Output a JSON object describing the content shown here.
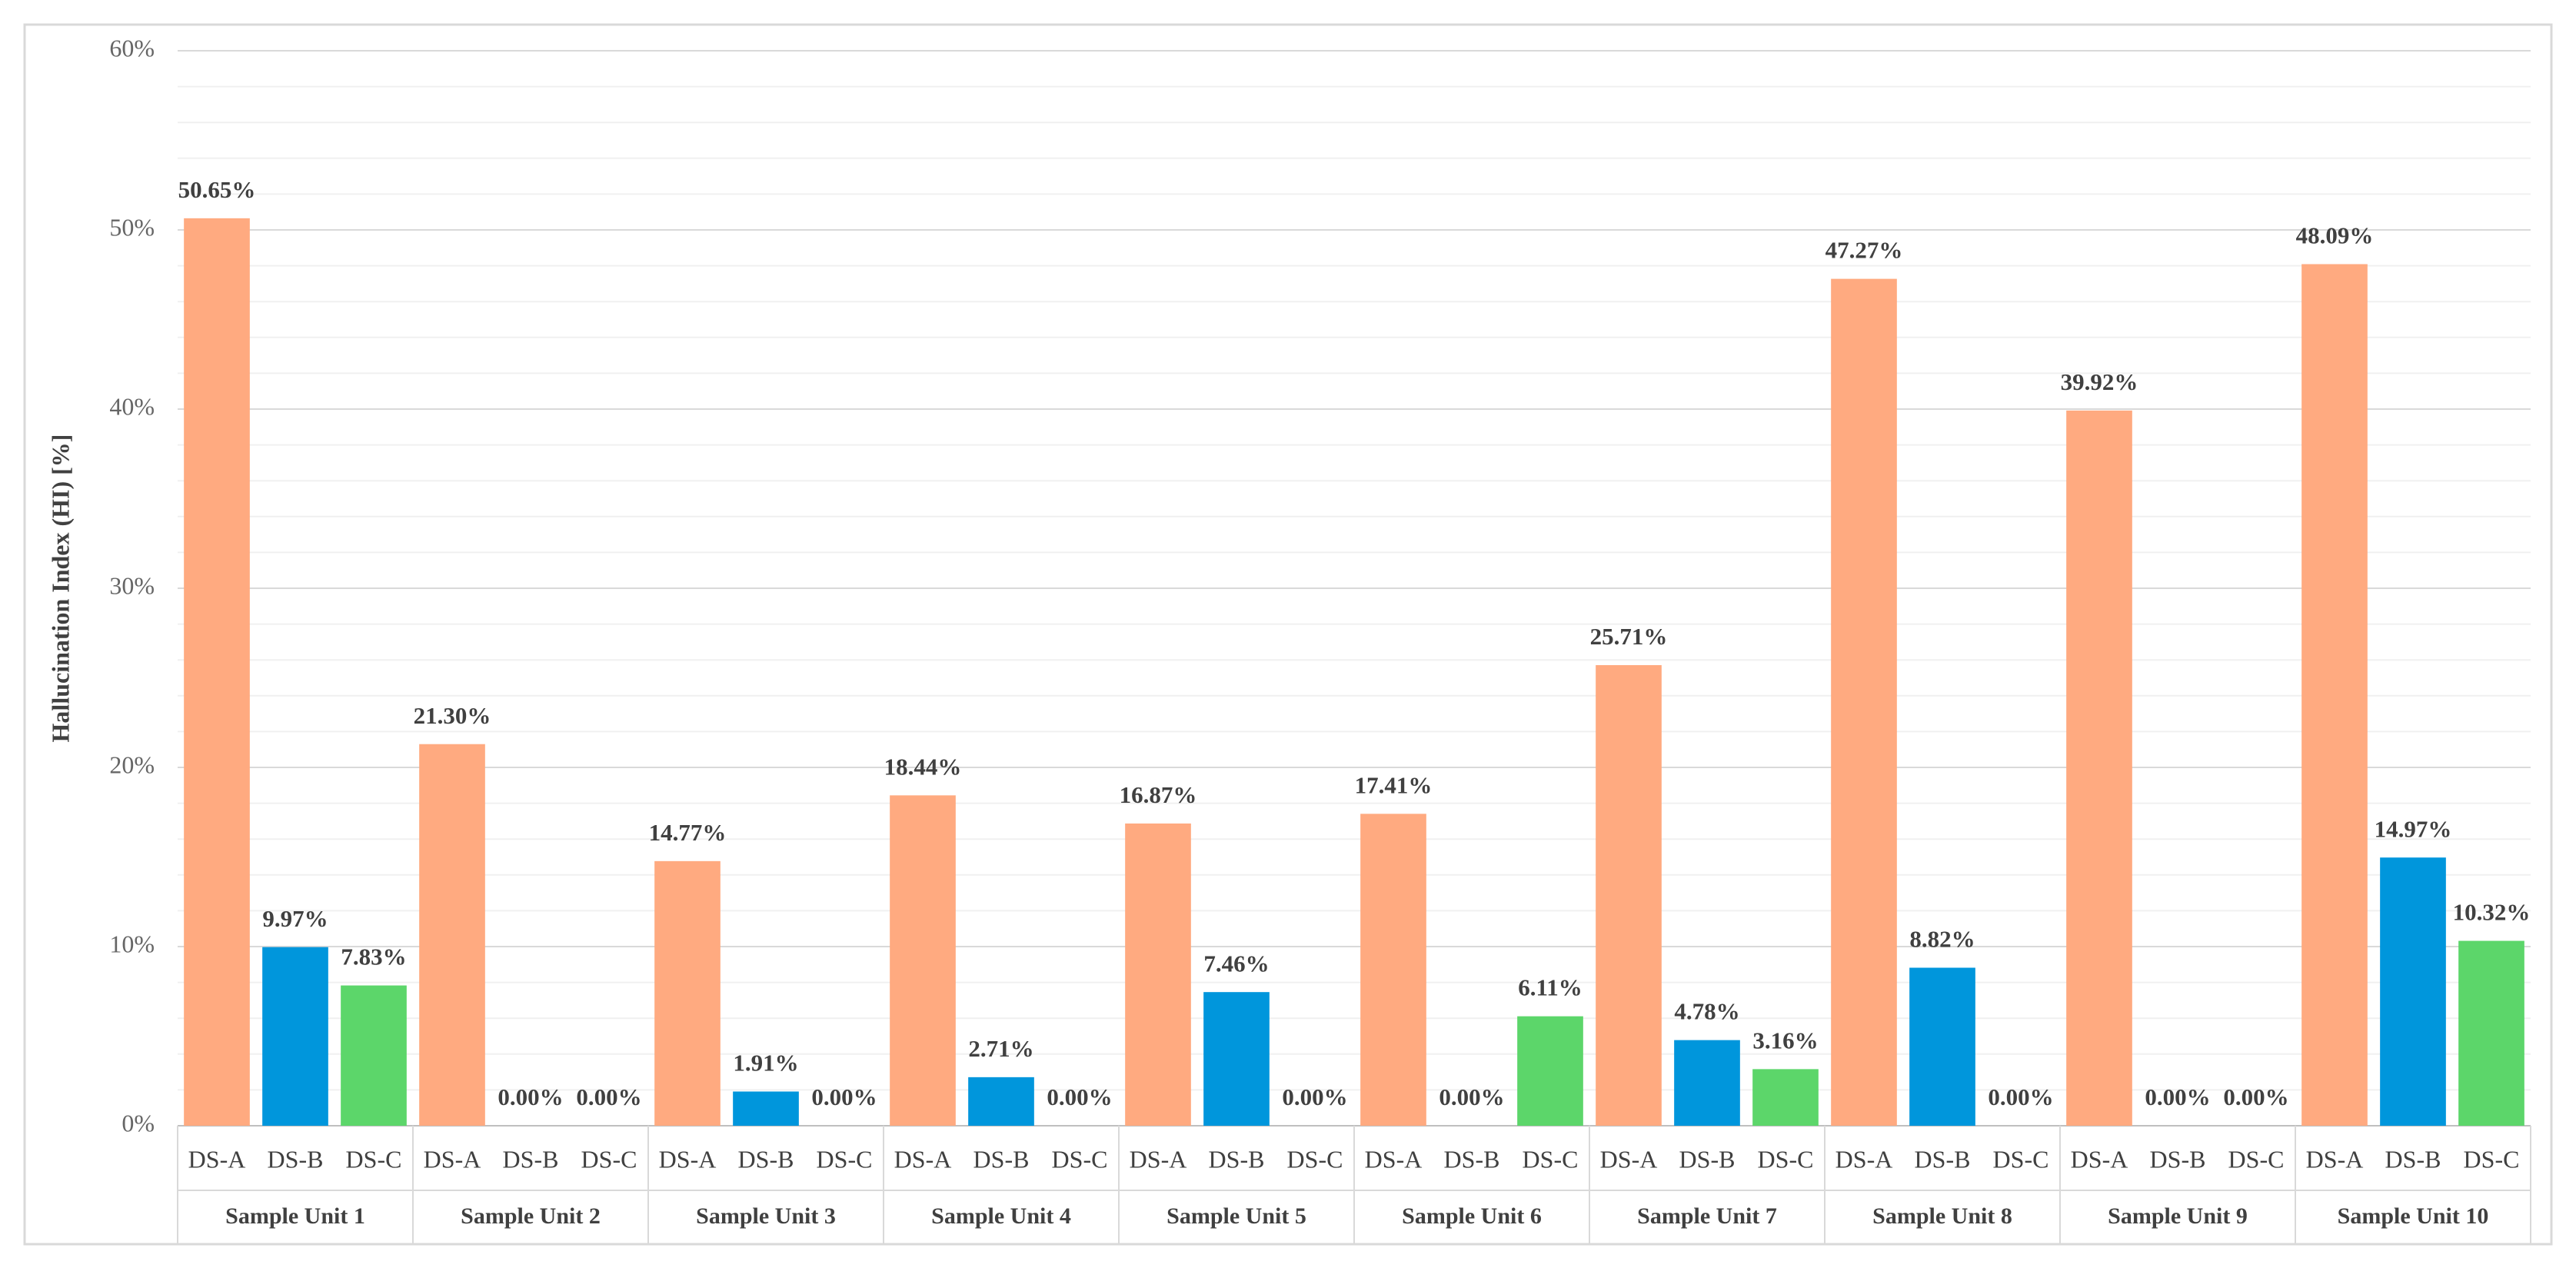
{
  "chart_data": {
    "type": "bar",
    "y_label": "Hallucination Index (HI) [%]",
    "categories": [
      "Sample Unit 1",
      "Sample Unit 2",
      "Sample Unit 3",
      "Sample Unit 4",
      "Sample Unit 5",
      "Sample Unit 6",
      "Sample Unit 7",
      "Sample Unit 8",
      "Sample Unit 9",
      "Sample Unit 10"
    ],
    "series": [
      {
        "name": "DS-A",
        "color": "#ffaa80",
        "values": [
          50.65,
          21.3,
          14.77,
          18.44,
          16.87,
          17.41,
          25.71,
          47.27,
          39.92,
          48.09
        ],
        "value_labels": [
          "50.65%",
          "21.30%",
          "14.77%",
          "18.44%",
          "16.87%",
          "17.41%",
          "25.71%",
          "47.27%",
          "39.92%",
          "48.09%"
        ]
      },
      {
        "name": "DS-B",
        "color": "#0096dc",
        "values": [
          9.97,
          0,
          1.91,
          2.71,
          7.46,
          0,
          4.78,
          8.82,
          0,
          14.97
        ],
        "value_labels": [
          "9.97%",
          "0.00%",
          "1.91%",
          "2.71%",
          "7.46%",
          "0.00%",
          "4.78%",
          "8.82%",
          "0.00%",
          "14.97%"
        ]
      },
      {
        "name": "DS-C",
        "color": "#5cd66a",
        "values": [
          7.83,
          0,
          0,
          0,
          0,
          6.11,
          3.16,
          0,
          0,
          10.32
        ],
        "value_labels": [
          "7.83%",
          "0.00%",
          "0.00%",
          "0.00%",
          "0.00%",
          "6.11%",
          "3.16%",
          "0.00%",
          "0.00%",
          "10.32%"
        ]
      }
    ],
    "ylim": [
      0,
      60
    ],
    "yticks": [
      {
        "value": 0,
        "label": "0%"
      },
      {
        "value": 10,
        "label": "10%"
      },
      {
        "value": 20,
        "label": "20%"
      },
      {
        "value": 30,
        "label": "30%"
      },
      {
        "value": 40,
        "label": "40%"
      },
      {
        "value": 50,
        "label": "50%"
      },
      {
        "value": 60,
        "label": "60%"
      }
    ],
    "minor_yticks": [
      2,
      4,
      6,
      8,
      12,
      14,
      16,
      18,
      22,
      24,
      26,
      28,
      32,
      34,
      36,
      38,
      42,
      44,
      46,
      48,
      52,
      54,
      56,
      58
    ],
    "grid": true
  }
}
